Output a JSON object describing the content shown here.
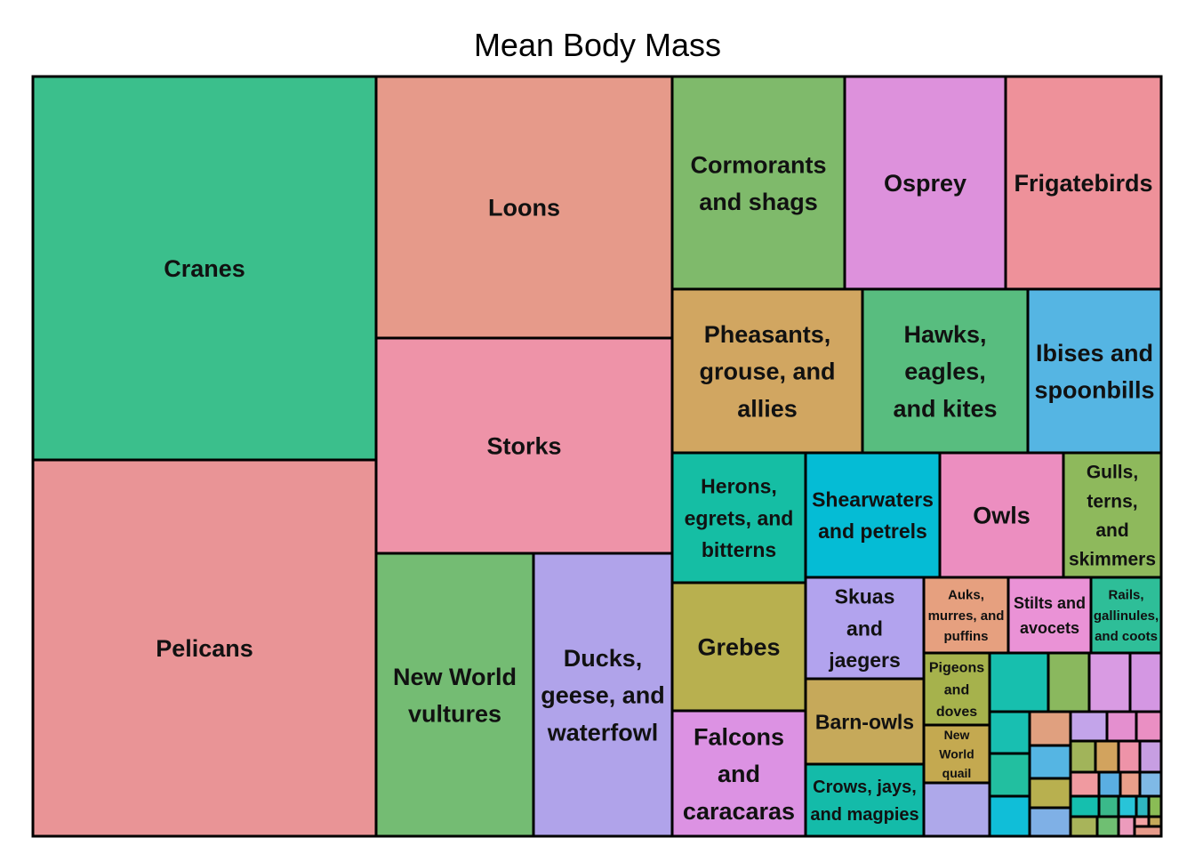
{
  "chart_data": {
    "type": "treemap",
    "title": "Mean Body Mass",
    "items": [
      {
        "name": "Cranes",
        "color": "#3bbf8c"
      },
      {
        "name": "Pelicans",
        "color": "#e99496"
      },
      {
        "name": "Loons",
        "color": "#e69a8a"
      },
      {
        "name": "Storks",
        "color": "#ee93a8"
      },
      {
        "name": "New World vultures",
        "color": "#74bc73"
      },
      {
        "name": "Ducks, geese, and waterfowl",
        "color": "#b0a3ea"
      },
      {
        "name": "Cormorants and shags",
        "color": "#7fba6b"
      },
      {
        "name": "Osprey",
        "color": "#dd91dc"
      },
      {
        "name": "Frigatebirds",
        "color": "#ee919a"
      },
      {
        "name": "Pheasants, grouse, and allies",
        "color": "#d1a661"
      },
      {
        "name": "Hawks, eagles, and kites",
        "color": "#58bd7f"
      },
      {
        "name": "Ibises and spoonbills",
        "color": "#55b5e3"
      },
      {
        "name": "Herons, egrets, and bitterns",
        "color": "#15bea4"
      },
      {
        "name": "Shearwaters and petrels",
        "color": "#05bcd5"
      },
      {
        "name": "Owls",
        "color": "#ec8ec0"
      },
      {
        "name": "Gulls, terns, and skimmers",
        "color": "#8eb95c"
      },
      {
        "name": "Grebes",
        "color": "#b8b04f"
      },
      {
        "name": "Falcons and caracaras",
        "color": "#dc92e3"
      },
      {
        "name": "Skuas and jaegers",
        "color": "#b2a3ee"
      },
      {
        "name": "Barn-owls",
        "color": "#c6a95a"
      },
      {
        "name": "Crows, jays, and magpies",
        "color": "#14bba9"
      },
      {
        "name": "Auks, murres, and puffins",
        "color": "#e6a07f"
      },
      {
        "name": "Stilts and avocets",
        "color": "#ea92d6"
      },
      {
        "name": "Rails, gallinules, and coots",
        "color": "#2ebe98"
      },
      {
        "name": "Pigeons and doves",
        "color": "#a6b24c"
      },
      {
        "name": "New World quail",
        "color": "#c4a950"
      }
    ]
  }
}
